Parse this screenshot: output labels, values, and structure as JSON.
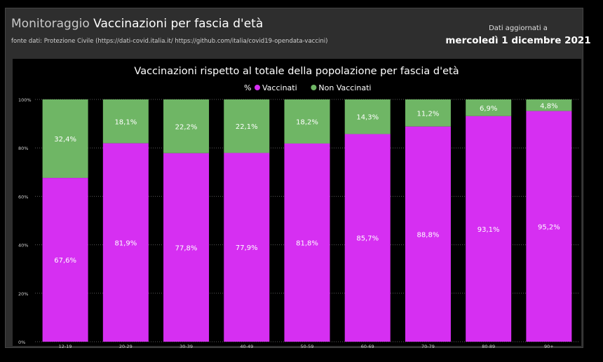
{
  "header": {
    "title_prefix": "Monitoraggio",
    "title_main": "Vaccinazioni per fascia d'età",
    "source": "fonte dati: Protezione Civile (https://dati-covid.italia.it/ https://github.com/italia/covid19-opendata-vaccini)",
    "updated_label": "Dati aggiornati a",
    "updated_date": "mercoledì 1 dicembre 2021"
  },
  "colors": {
    "vaccinati": "#d62ff2",
    "non_vaccinati": "#6fb665"
  },
  "chart_data": {
    "type": "bar",
    "stacked": true,
    "title": "Vaccinazioni rispetto al totale della popolazione per fascia d'età",
    "legend_label": "%",
    "legend_position": "top-center",
    "categories": [
      "12-19",
      "20-29",
      "30-39",
      "40-49",
      "50-59",
      "60-69",
      "70-79",
      "80-89",
      "90+"
    ],
    "series": [
      {
        "name": "Vaccinati",
        "values": [
          67.6,
          81.9,
          77.8,
          77.9,
          81.8,
          85.7,
          88.8,
          93.1,
          95.2
        ],
        "labels": [
          "67,6%",
          "81,9%",
          "77,8%",
          "77,9%",
          "81,8%",
          "85,7%",
          "88,8%",
          "93,1%",
          "95,2%"
        ]
      },
      {
        "name": "Non Vaccinati",
        "values": [
          32.4,
          18.1,
          22.2,
          22.1,
          18.2,
          14.3,
          11.2,
          6.9,
          4.8
        ],
        "labels": [
          "32,4%",
          "18,1%",
          "22,2%",
          "22,1%",
          "18,2%",
          "14,3%",
          "11,2%",
          "6,9%",
          "4,8%"
        ]
      }
    ],
    "yticks": [
      "0%",
      "20%",
      "40%",
      "60%",
      "80%",
      "100%"
    ],
    "ylim": [
      0,
      100
    ],
    "grid": true
  }
}
